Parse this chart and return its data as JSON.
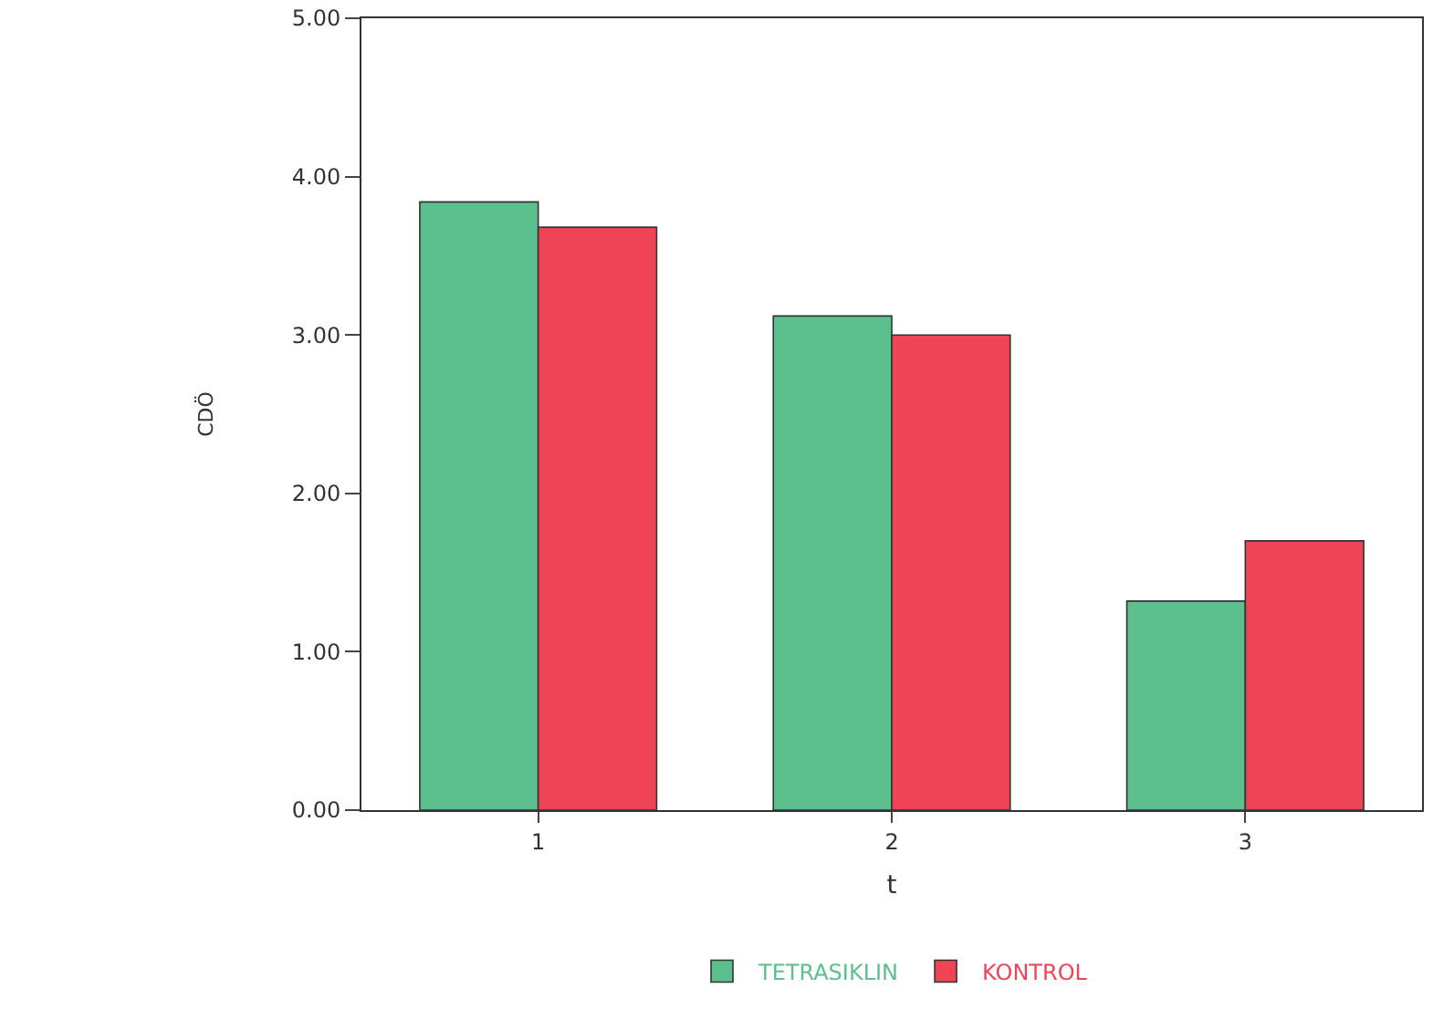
{
  "chart_data": {
    "type": "bar",
    "xlabel": "t",
    "ylabel": "CDÖ",
    "categories": [
      "1",
      "2",
      "3"
    ],
    "series": [
      {
        "name": "TETRASIKLIN",
        "color": "#5cbf8e",
        "values": [
          3.84,
          3.12,
          1.32
        ]
      },
      {
        "name": "KONTROL",
        "color": "#ef4456",
        "values": [
          3.68,
          3.0,
          1.7
        ]
      }
    ],
    "ylim": [
      0,
      5
    ],
    "yticks": [
      {
        "value": 0,
        "label": "0.00"
      },
      {
        "value": 1,
        "label": "1.00"
      },
      {
        "value": 2,
        "label": "2.00"
      },
      {
        "value": 3,
        "label": "3.00"
      },
      {
        "value": 4,
        "label": "4.00"
      },
      {
        "value": 5,
        "label": "5.00"
      }
    ],
    "grid": false,
    "legend": "bottom"
  }
}
